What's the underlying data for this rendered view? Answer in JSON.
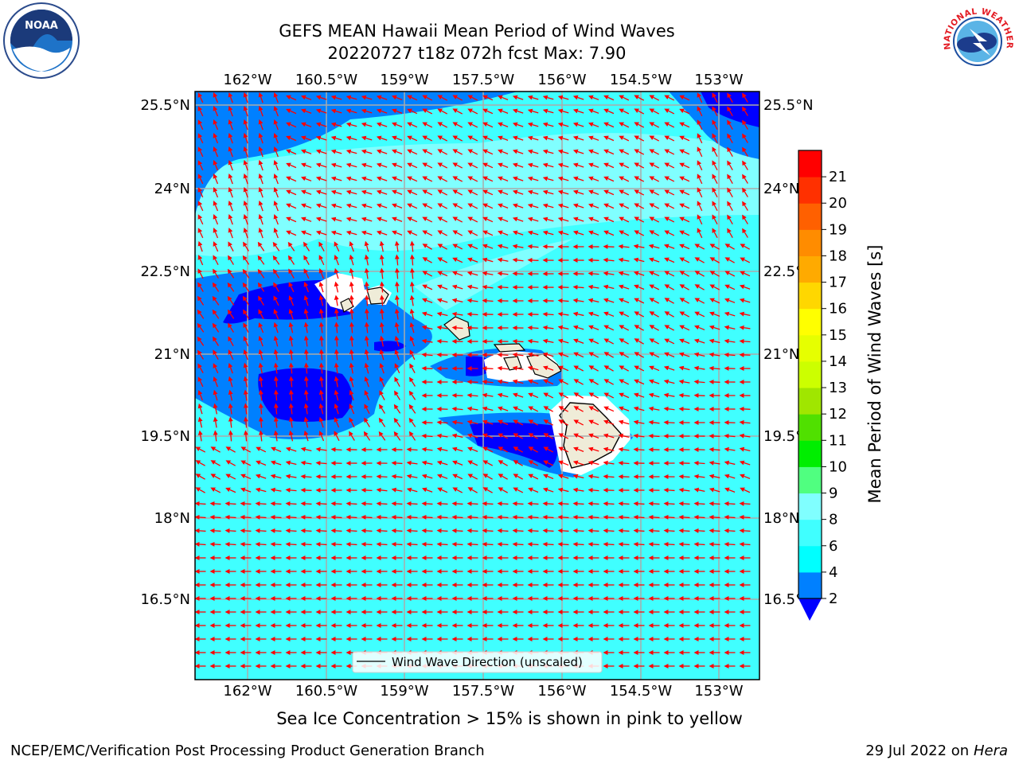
{
  "header": {
    "title": "GEFS MEAN Hawaii Mean Period of Wind Waves",
    "subtitle_line": "20220727 t18z 072h fcst   Max: 7.90"
  },
  "map": {
    "lon_ticks": [
      "162°W",
      "160.5°W",
      "159°W",
      "157.5°W",
      "156°W",
      "154.5°W",
      "153°W"
    ],
    "lat_ticks": [
      "25.5°N",
      "24°N",
      "22.5°N",
      "21°N",
      "19.5°N",
      "18°N",
      "16.5°N"
    ],
    "legend_label": "Wind Wave Direction (unscaled)",
    "arrow_color": "#ff0000"
  },
  "colorbar": {
    "label": "Mean Period of Wind Waves [s]",
    "ticks": [
      "2",
      "4",
      "6",
      "8",
      "9",
      "10",
      "11",
      "12",
      "13",
      "14",
      "15",
      "16",
      "17",
      "18",
      "19",
      "20",
      "21"
    ],
    "colors": [
      "#0080ff",
      "#00ffff",
      "#40ffff",
      "#80ffff",
      "#50ff80",
      "#00ee00",
      "#50e000",
      "#a0e600",
      "#ccff00",
      "#e6ff00",
      "#ffff00",
      "#ffd700",
      "#ffaa00",
      "#ff8c00",
      "#ff6000",
      "#ff3000",
      "#ff0000"
    ],
    "underflow_color": "#0000ff"
  },
  "notes": {
    "sea_ice": "Sea Ice Concentration > 15% is shown in pink to yellow"
  },
  "footer": {
    "left": "NCEP/EMC/Verification Post Processing Product Generation Branch",
    "date": "29 Jul 2022 on ",
    "machine": "Hera"
  },
  "logos": {
    "noaa_text": "NOAA",
    "nws_text": "NATIONAL WEATHER SERVICE"
  }
}
